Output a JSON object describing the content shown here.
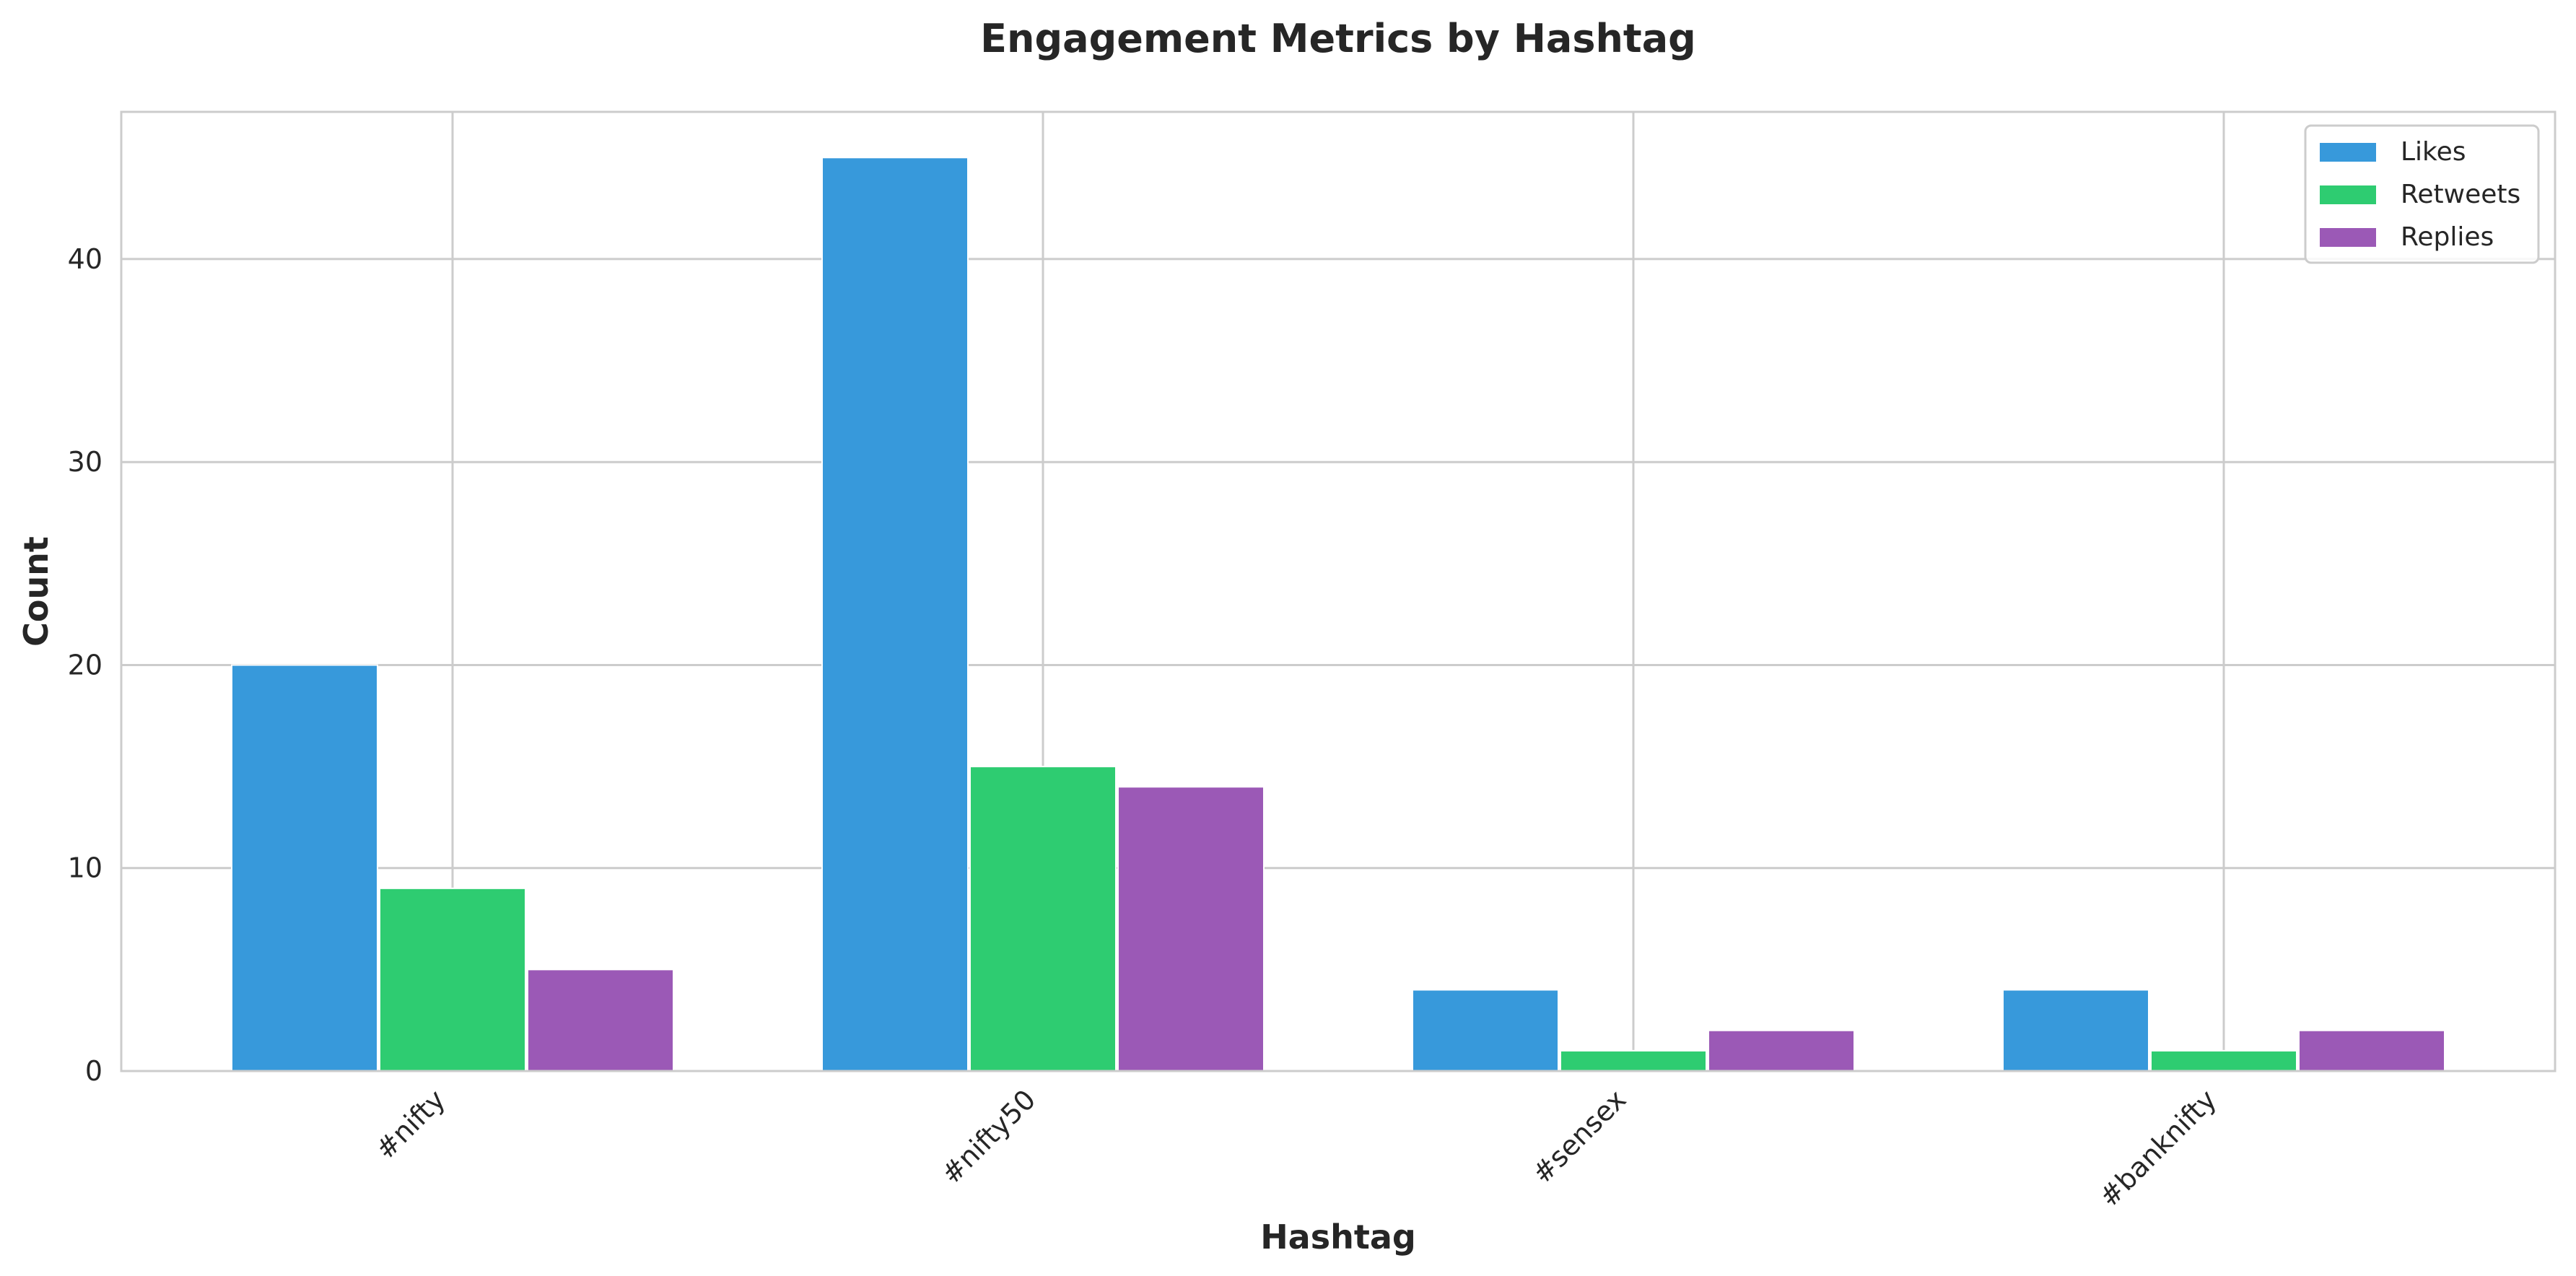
{
  "chart_data": {
    "type": "bar",
    "title": "Engagement Metrics by Hashtag",
    "xlabel": "Hashtag",
    "ylabel": "Count",
    "categories": [
      "#nifty",
      "#nifty50",
      "#sensex",
      "#banknifty"
    ],
    "series": [
      {
        "name": "Likes",
        "values": [
          20,
          45,
          4,
          4
        ],
        "color": "#3799db"
      },
      {
        "name": "Retweets",
        "values": [
          9,
          15,
          1,
          1
        ],
        "color": "#2ecc71"
      },
      {
        "name": "Replies",
        "values": [
          5,
          14,
          2,
          2
        ],
        "color": "#9b59b6"
      }
    ],
    "ylim": [
      0,
      47.25
    ],
    "yticks": [
      0,
      10,
      20,
      30,
      40
    ],
    "grid": true,
    "legend_position": "top-right"
  }
}
